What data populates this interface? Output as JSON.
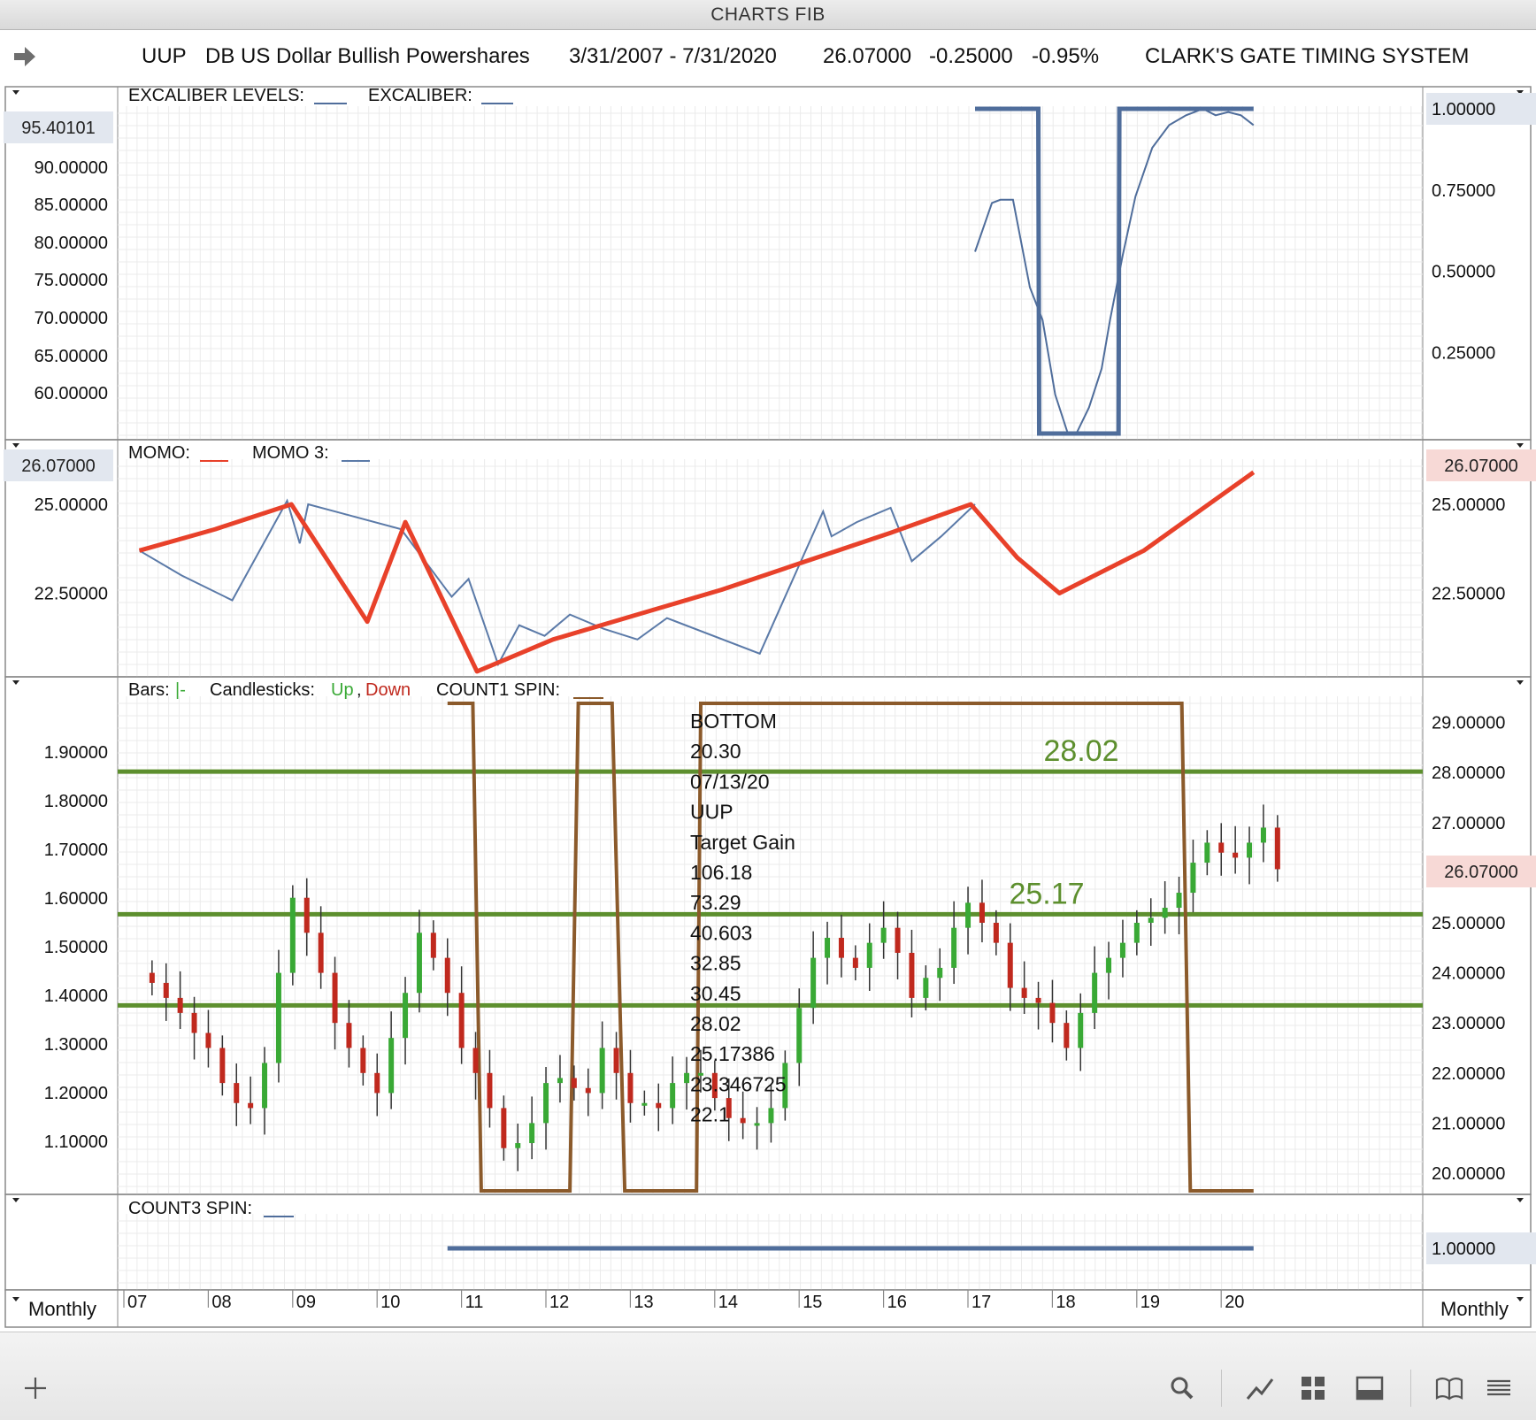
{
  "window": {
    "title": "CHARTS FIB"
  },
  "header": {
    "symbol": "UUP",
    "name": "DB US Dollar Bullish Powershares",
    "date_range": "3/31/2007 - 7/31/2020",
    "last": "26.07000",
    "change": "-0.25000",
    "change_pct": "-0.95%",
    "system": "CLARK'S GATE TIMING SYSTEM"
  },
  "timeframe": {
    "left": "Monthly",
    "right": "Monthly"
  },
  "toolbar": [
    "add-icon",
    "search-icon",
    "draw-line-icon",
    "grid-layout-icon",
    "panel-layout-icon",
    "book-icon",
    "menu-icon"
  ],
  "colors": {
    "up": "#39a935",
    "down": "#c0291e",
    "momo": "#e8412a",
    "momo3": "#5b7aa8",
    "excaliber": "#4f6d9b",
    "spin": "#8b5a2b",
    "level": "#5d8f2e"
  },
  "chart_data": [
    {
      "panel": "excaliber",
      "type": "line",
      "legend": [
        "EXCALIBER LEVELS:",
        "EXCALIBER:"
      ],
      "left_axis": {
        "ticks": [
          "90.00000",
          "85.00000",
          "80.00000",
          "75.00000",
          "70.00000",
          "65.00000",
          "60.00000"
        ],
        "current": "95.40101"
      },
      "right_axis": {
        "ticks": [
          "1.00000",
          "0.75000",
          "0.50000",
          "0.25000"
        ]
      },
      "ylim_right": [
        0,
        1
      ],
      "series": [
        {
          "name": "EXCALIBER LEVELS",
          "x": [
            2017.0,
            2017.75,
            2017.76,
            2018.7,
            2018.71,
            2020.3
          ],
          "values": [
            1,
            1,
            0,
            0,
            1,
            1
          ]
        },
        {
          "name": "EXCALIBER",
          "x": [
            2017.0,
            2017.2,
            2017.3,
            2017.45,
            2017.65,
            2017.8,
            2017.95,
            2018.1,
            2018.2,
            2018.35,
            2018.5,
            2018.6,
            2018.75,
            2018.9,
            2019.1,
            2019.3,
            2019.5,
            2019.7,
            2019.85,
            2020.0,
            2020.15,
            2020.3
          ],
          "values": [
            0.56,
            0.71,
            0.72,
            0.72,
            0.45,
            0.35,
            0.12,
            0.0,
            0.0,
            0.08,
            0.2,
            0.35,
            0.55,
            0.73,
            0.88,
            0.95,
            0.98,
            1.0,
            0.98,
            0.99,
            0.98,
            0.95
          ]
        }
      ]
    },
    {
      "panel": "momo",
      "type": "line",
      "legend": [
        "MOMO:",
        "MOMO 3:"
      ],
      "left_axis": {
        "ticks": [
          "25.00000",
          "22.50000"
        ],
        "current": "26.07000"
      },
      "right_axis": {
        "ticks": [
          "25.00000",
          "22.50000"
        ],
        "current": "26.07000"
      },
      "ylim": [
        20.25,
        26.65
      ],
      "series": [
        {
          "name": "MOMO",
          "x": [
            2007.1,
            2008.0,
            2008.9,
            2009.8,
            2010.25,
            2011.1,
            2012.0,
            2013.0,
            2014.0,
            2015.0,
            2016.0,
            2016.95,
            2017.5,
            2018.0,
            2019.0,
            2020.3
          ],
          "values": [
            23.7,
            24.3,
            25.0,
            21.7,
            24.5,
            20.3,
            21.2,
            21.9,
            22.6,
            23.4,
            24.2,
            25.0,
            23.5,
            22.5,
            23.7,
            25.9
          ]
        },
        {
          "name": "MOMO 3",
          "x": [
            2007.1,
            2007.6,
            2008.2,
            2008.85,
            2009.0,
            2009.1,
            2010.2,
            2010.8,
            2011.0,
            2011.35,
            2011.6,
            2011.9,
            2012.2,
            2012.6,
            2013.0,
            2013.35,
            2014.45,
            2015.2,
            2015.3,
            2015.6,
            2016.0,
            2016.25,
            2016.6,
            2017.0
          ],
          "values": [
            23.7,
            23.0,
            22.3,
            25.1,
            23.9,
            25.0,
            24.3,
            22.4,
            22.9,
            20.5,
            21.6,
            21.3,
            21.9,
            21.5,
            21.2,
            21.8,
            20.8,
            24.8,
            24.1,
            24.5,
            24.9,
            23.4,
            24.1,
            25.0
          ]
        }
      ]
    },
    {
      "panel": "price",
      "type": "candlestick",
      "legend": {
        "bars_label": "Bars:",
        "bars_value": "|-",
        "candles_label": "Candlesticks:",
        "up_label": "Up",
        "sep": ",",
        "down_label": "Down",
        "spin_label": "COUNT1 SPIN:"
      },
      "left_axis": {
        "ticks": [
          "1.90000",
          "1.80000",
          "1.70000",
          "1.60000",
          "1.50000",
          "1.40000",
          "1.30000",
          "1.20000",
          "1.10000"
        ]
      },
      "right_axis": {
        "ticks": [
          "29.00000",
          "28.00000",
          "27.00000",
          "26.00000",
          "25.00000",
          "24.00000",
          "23.00000",
          "22.00000",
          "21.00000",
          "20.00000"
        ],
        "current": "26.07000"
      },
      "ylim": [
        19.7,
        29.4
      ],
      "levels": [
        {
          "value": 28.02,
          "label": "28.02"
        },
        {
          "value": 25.17,
          "label": "25.17"
        },
        {
          "value": 23.35,
          "label": ""
        }
      ],
      "annotation": [
        "BOTTOM",
        "20.30",
        "07/13/20",
        "UUP",
        "Target Gain",
        "106.18",
        "73.29",
        "40.603",
        "32.85",
        "30.45",
        "28.02",
        "25.17386",
        "23.346725",
        "22.1"
      ],
      "spin": {
        "x": [
          2010.75,
          2011.05,
          2011.15,
          2012.2,
          2012.3,
          2012.7,
          2012.85,
          2013.7,
          2013.75,
          2019.45,
          2019.55,
          2020.3
        ],
        "values": [
          1,
          1,
          0,
          0,
          1,
          1,
          0,
          0,
          1,
          1,
          0,
          0
        ]
      },
      "closes_every_2mo": [
        23.8,
        23.5,
        23.2,
        22.8,
        22.5,
        21.8,
        21.4,
        21.3,
        22.2,
        24.0,
        25.5,
        24.8,
        24.0,
        23.0,
        22.5,
        22.0,
        21.6,
        22.7,
        23.6,
        24.8,
        24.3,
        23.6,
        22.5,
        22.0,
        21.3,
        20.5,
        20.6,
        21.0,
        21.8,
        21.9,
        21.7,
        21.6,
        22.5,
        22.0,
        21.4,
        21.4,
        21.3,
        21.8,
        22.0,
        22.0,
        21.5,
        21.1,
        21.0,
        21.0,
        21.3,
        22.2,
        23.3,
        24.3,
        24.7,
        24.3,
        24.1,
        24.6,
        24.9,
        24.4,
        23.5,
        23.9,
        24.1,
        24.9,
        25.4,
        25.0,
        24.6,
        23.7,
        23.5,
        23.4,
        23.0,
        22.5,
        23.2,
        24.0,
        24.3,
        24.6,
        25.0,
        25.1,
        25.3,
        25.6,
        26.2,
        26.6,
        26.4,
        26.3,
        26.6,
        26.9,
        26.07
      ]
    },
    {
      "panel": "count3",
      "type": "line",
      "legend": [
        "COUNT3 SPIN:"
      ],
      "right_axis": {
        "ticks": [
          "1.00000"
        ]
      },
      "series": [
        {
          "name": "COUNT3 SPIN",
          "x": [
            2010.75,
            2020.3
          ],
          "values": [
            1,
            1
          ]
        }
      ]
    }
  ],
  "xaxis": {
    "labels": [
      "07",
      "08",
      "09",
      "10",
      "11",
      "12",
      "13",
      "14",
      "15",
      "16",
      "17",
      "18",
      "19",
      "20"
    ]
  }
}
